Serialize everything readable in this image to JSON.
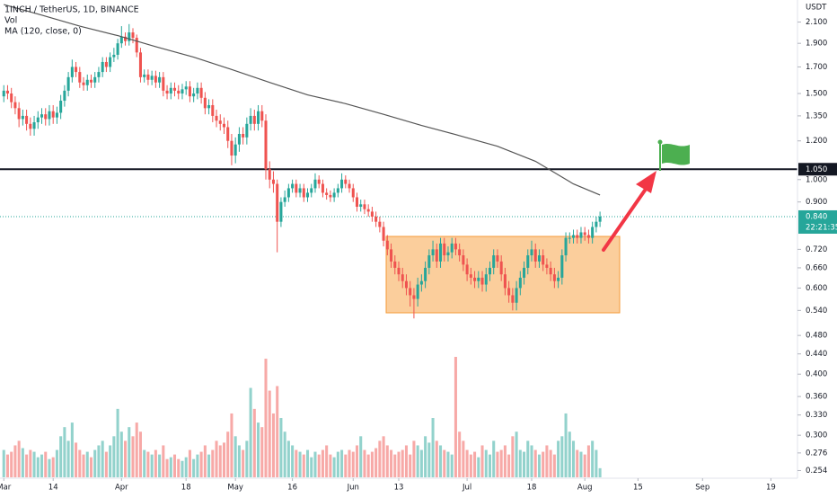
{
  "chart_data": {
    "type": "candlestick",
    "title": "1INCH / TetherUS, 1D, BINANCE",
    "y_unit": "USDT",
    "up_color": "#26a69a",
    "down_color": "#ef5350",
    "log_scale": true,
    "grid": false,
    "x": [
      "03-01",
      "03-02",
      "03-03",
      "03-04",
      "03-05",
      "03-06",
      "03-07",
      "03-08",
      "03-09",
      "03-10",
      "03-11",
      "03-12",
      "03-13",
      "03-14",
      "03-15",
      "03-16",
      "03-17",
      "03-18",
      "03-19",
      "03-20",
      "03-21",
      "03-22",
      "03-23",
      "03-24",
      "03-25",
      "03-26",
      "03-27",
      "03-28",
      "03-29",
      "03-30",
      "03-31",
      "04-01",
      "04-02",
      "04-03",
      "04-04",
      "04-05",
      "04-06",
      "04-07",
      "04-08",
      "04-09",
      "04-10",
      "04-11",
      "04-12",
      "04-13",
      "04-14",
      "04-15",
      "04-16",
      "04-17",
      "04-18",
      "04-19",
      "04-20",
      "04-21",
      "04-22",
      "04-23",
      "04-24",
      "04-25",
      "04-26",
      "04-27",
      "04-28",
      "04-29",
      "04-30",
      "05-01",
      "05-02",
      "05-03",
      "05-04",
      "05-05",
      "05-06",
      "05-07",
      "05-08",
      "05-09",
      "05-10",
      "05-11",
      "05-12",
      "05-13",
      "05-14",
      "05-15",
      "05-16",
      "05-17",
      "05-18",
      "05-19",
      "05-20",
      "05-21",
      "05-22",
      "05-23",
      "05-24",
      "05-25",
      "05-26",
      "05-27",
      "05-28",
      "05-29",
      "05-30",
      "05-31",
      "06-01",
      "06-02",
      "06-03",
      "06-04",
      "06-05",
      "06-06",
      "06-07",
      "06-08",
      "06-09",
      "06-10",
      "06-11",
      "06-12",
      "06-13",
      "06-14",
      "06-15",
      "06-16",
      "06-17",
      "06-18",
      "06-19",
      "06-20",
      "06-21",
      "06-22",
      "06-23",
      "06-24",
      "06-25",
      "06-26",
      "06-27",
      "06-28",
      "06-29",
      "06-30",
      "07-01",
      "07-02",
      "07-03",
      "07-04",
      "07-05",
      "07-06",
      "07-07",
      "07-08",
      "07-09",
      "07-10",
      "07-11",
      "07-12",
      "07-13",
      "07-14",
      "07-15",
      "07-16",
      "07-17",
      "07-18",
      "07-19",
      "07-20",
      "07-21",
      "07-22",
      "07-23",
      "07-24",
      "07-25",
      "07-26",
      "07-27",
      "07-28",
      "07-29",
      "07-30",
      "07-31",
      "08-01",
      "08-02",
      "08-03",
      "08-04",
      "08-05"
    ],
    "open": [
      1.48,
      1.52,
      1.5,
      1.44,
      1.4,
      1.33,
      1.35,
      1.3,
      1.27,
      1.31,
      1.34,
      1.36,
      1.33,
      1.38,
      1.34,
      1.37,
      1.45,
      1.52,
      1.62,
      1.7,
      1.66,
      1.58,
      1.56,
      1.6,
      1.58,
      1.62,
      1.66,
      1.74,
      1.7,
      1.78,
      1.8,
      1.9,
      1.96,
      1.92,
      2.0,
      1.95,
      1.82,
      1.62,
      1.64,
      1.6,
      1.63,
      1.58,
      1.62,
      1.52,
      1.5,
      1.54,
      1.52,
      1.5,
      1.53,
      1.55,
      1.48,
      1.5,
      1.54,
      1.47,
      1.4,
      1.42,
      1.35,
      1.32,
      1.3,
      1.28,
      1.2,
      1.12,
      1.18,
      1.24,
      1.22,
      1.3,
      1.35,
      1.3,
      1.38,
      1.32,
      1.05,
      1.0,
      0.98,
      0.82,
      0.9,
      0.92,
      0.96,
      0.98,
      0.94,
      0.96,
      0.92,
      0.94,
      0.96,
      1.0,
      0.98,
      0.94,
      0.93,
      0.92,
      0.94,
      0.96,
      1.0,
      0.98,
      0.96,
      0.92,
      0.88,
      0.89,
      0.87,
      0.86,
      0.84,
      0.82,
      0.8,
      0.75,
      0.72,
      0.68,
      0.66,
      0.64,
      0.62,
      0.6,
      0.58,
      0.57,
      0.61,
      0.62,
      0.66,
      0.7,
      0.72,
      0.68,
      0.74,
      0.7,
      0.71,
      0.74,
      0.72,
      0.7,
      0.67,
      0.64,
      0.63,
      0.62,
      0.63,
      0.61,
      0.64,
      0.66,
      0.7,
      0.68,
      0.64,
      0.6,
      0.58,
      0.56,
      0.6,
      0.63,
      0.66,
      0.7,
      0.72,
      0.68,
      0.7,
      0.67,
      0.66,
      0.64,
      0.62,
      0.63,
      0.7,
      0.76,
      0.76,
      0.77,
      0.76,
      0.78,
      0.77,
      0.76,
      0.8,
      0.82
    ],
    "high": [
      1.56,
      1.56,
      1.54,
      1.48,
      1.44,
      1.39,
      1.39,
      1.34,
      1.35,
      1.38,
      1.4,
      1.4,
      1.42,
      1.42,
      1.41,
      1.49,
      1.56,
      1.66,
      1.76,
      1.74,
      1.7,
      1.62,
      1.64,
      1.64,
      1.66,
      1.7,
      1.78,
      1.78,
      1.82,
      1.86,
      1.94,
      2.06,
      2.0,
      2.08,
      2.04,
      1.98,
      1.86,
      1.68,
      1.68,
      1.67,
      1.67,
      1.66,
      1.66,
      1.56,
      1.58,
      1.58,
      1.56,
      1.57,
      1.59,
      1.59,
      1.54,
      1.58,
      1.58,
      1.51,
      1.46,
      1.46,
      1.39,
      1.36,
      1.34,
      1.32,
      1.24,
      1.22,
      1.28,
      1.28,
      1.34,
      1.4,
      1.39,
      1.42,
      1.42,
      1.36,
      1.09,
      1.04,
      1.0,
      0.92,
      0.95,
      0.98,
      1.0,
      1.0,
      0.98,
      0.98,
      0.96,
      0.98,
      1.03,
      1.02,
      1.0,
      0.96,
      0.95,
      0.96,
      0.98,
      1.03,
      1.02,
      1.0,
      0.98,
      0.94,
      0.91,
      0.91,
      0.89,
      0.88,
      0.86,
      0.84,
      0.82,
      0.77,
      0.74,
      0.7,
      0.68,
      0.66,
      0.64,
      0.62,
      0.6,
      0.63,
      0.64,
      0.68,
      0.72,
      0.75,
      0.74,
      0.76,
      0.76,
      0.73,
      0.76,
      0.76,
      0.74,
      0.72,
      0.69,
      0.66,
      0.65,
      0.65,
      0.65,
      0.66,
      0.68,
      0.72,
      0.72,
      0.7,
      0.66,
      0.62,
      0.6,
      0.62,
      0.65,
      0.68,
      0.72,
      0.75,
      0.74,
      0.72,
      0.72,
      0.69,
      0.68,
      0.66,
      0.65,
      0.72,
      0.78,
      0.78,
      0.79,
      0.79,
      0.8,
      0.8,
      0.79,
      0.82,
      0.84,
      0.86
    ],
    "low": [
      1.44,
      1.46,
      1.4,
      1.36,
      1.28,
      1.29,
      1.26,
      1.23,
      1.23,
      1.27,
      1.3,
      1.29,
      1.29,
      1.3,
      1.3,
      1.33,
      1.41,
      1.48,
      1.58,
      1.62,
      1.54,
      1.52,
      1.52,
      1.54,
      1.54,
      1.58,
      1.62,
      1.66,
      1.66,
      1.74,
      1.76,
      1.86,
      1.88,
      1.88,
      1.9,
      1.78,
      1.58,
      1.58,
      1.56,
      1.56,
      1.54,
      1.54,
      1.48,
      1.46,
      1.46,
      1.48,
      1.46,
      1.46,
      1.49,
      1.44,
      1.44,
      1.46,
      1.43,
      1.36,
      1.36,
      1.31,
      1.28,
      1.26,
      1.24,
      1.16,
      1.07,
      1.08,
      1.14,
      1.18,
      1.18,
      1.26,
      1.26,
      1.26,
      1.28,
      1.0,
      0.96,
      0.94,
      0.71,
      0.8,
      0.88,
      0.9,
      0.94,
      0.92,
      0.92,
      0.9,
      0.9,
      0.92,
      0.94,
      0.96,
      0.92,
      0.91,
      0.9,
      0.9,
      0.92,
      0.94,
      0.96,
      0.94,
      0.9,
      0.86,
      0.86,
      0.85,
      0.84,
      0.82,
      0.8,
      0.78,
      0.73,
      0.7,
      0.66,
      0.64,
      0.62,
      0.6,
      0.58,
      0.55,
      0.52,
      0.55,
      0.59,
      0.6,
      0.64,
      0.68,
      0.66,
      0.66,
      0.68,
      0.68,
      0.69,
      0.7,
      0.68,
      0.65,
      0.62,
      0.61,
      0.6,
      0.6,
      0.59,
      0.59,
      0.62,
      0.64,
      0.66,
      0.62,
      0.58,
      0.56,
      0.54,
      0.54,
      0.58,
      0.61,
      0.64,
      0.68,
      0.66,
      0.66,
      0.65,
      0.64,
      0.62,
      0.6,
      0.6,
      0.61,
      0.68,
      0.74,
      0.74,
      0.74,
      0.74,
      0.75,
      0.74,
      0.74,
      0.78,
      0.8
    ],
    "close": [
      1.52,
      1.5,
      1.44,
      1.4,
      1.33,
      1.35,
      1.3,
      1.27,
      1.31,
      1.34,
      1.36,
      1.33,
      1.38,
      1.34,
      1.37,
      1.45,
      1.52,
      1.62,
      1.7,
      1.66,
      1.58,
      1.56,
      1.6,
      1.58,
      1.62,
      1.66,
      1.74,
      1.7,
      1.78,
      1.8,
      1.9,
      1.96,
      1.92,
      2.0,
      1.95,
      1.82,
      1.62,
      1.64,
      1.6,
      1.63,
      1.58,
      1.62,
      1.52,
      1.5,
      1.54,
      1.52,
      1.5,
      1.53,
      1.55,
      1.48,
      1.5,
      1.54,
      1.47,
      1.4,
      1.42,
      1.35,
      1.32,
      1.3,
      1.28,
      1.2,
      1.12,
      1.18,
      1.24,
      1.22,
      1.3,
      1.35,
      1.3,
      1.38,
      1.32,
      1.05,
      1.0,
      0.98,
      0.82,
      0.9,
      0.92,
      0.96,
      0.98,
      0.94,
      0.96,
      0.92,
      0.94,
      0.96,
      1.0,
      0.98,
      0.94,
      0.93,
      0.92,
      0.94,
      0.96,
      1.0,
      0.98,
      0.96,
      0.92,
      0.88,
      0.89,
      0.87,
      0.86,
      0.84,
      0.82,
      0.8,
      0.75,
      0.72,
      0.68,
      0.66,
      0.64,
      0.62,
      0.6,
      0.58,
      0.57,
      0.61,
      0.62,
      0.66,
      0.7,
      0.72,
      0.68,
      0.74,
      0.7,
      0.71,
      0.74,
      0.72,
      0.7,
      0.67,
      0.64,
      0.63,
      0.62,
      0.63,
      0.61,
      0.64,
      0.66,
      0.7,
      0.68,
      0.64,
      0.6,
      0.58,
      0.56,
      0.6,
      0.63,
      0.66,
      0.7,
      0.72,
      0.68,
      0.7,
      0.67,
      0.66,
      0.64,
      0.62,
      0.63,
      0.7,
      0.76,
      0.76,
      0.77,
      0.76,
      0.78,
      0.77,
      0.76,
      0.8,
      0.82,
      0.84
    ],
    "volume": {
      "name": "Vol",
      "values": [
        30,
        25,
        28,
        35,
        40,
        32,
        25,
        30,
        28,
        22,
        25,
        28,
        20,
        22,
        30,
        45,
        55,
        40,
        60,
        38,
        30,
        25,
        28,
        22,
        30,
        35,
        40,
        28,
        35,
        45,
        75,
        50,
        40,
        55,
        45,
        60,
        50,
        30,
        28,
        25,
        30,
        25,
        35,
        20,
        22,
        25,
        20,
        18,
        22,
        30,
        20,
        25,
        28,
        35,
        25,
        30,
        40,
        35,
        38,
        50,
        70,
        45,
        35,
        30,
        40,
        98,
        75,
        60,
        55,
        130,
        95,
        70,
        100,
        65,
        50,
        40,
        35,
        30,
        28,
        25,
        30,
        22,
        28,
        25,
        30,
        35,
        25,
        22,
        28,
        30,
        25,
        30,
        28,
        35,
        45,
        30,
        25,
        28,
        32,
        40,
        45,
        35,
        30,
        25,
        28,
        30,
        35,
        25,
        40,
        35,
        30,
        45,
        38,
        65,
        40,
        35,
        30,
        28,
        25,
        132,
        50,
        40,
        30,
        25,
        28,
        22,
        35,
        30,
        25,
        40,
        28,
        30,
        35,
        25,
        45,
        50,
        30,
        28,
        40,
        35,
        30,
        25,
        28,
        35,
        30,
        25,
        40,
        45,
        70,
        50,
        40,
        30,
        28,
        25,
        35,
        40,
        30,
        10
      ]
    },
    "ma": {
      "name": "MA (120, close, 0)",
      "color": "#555555",
      "x": [
        "03-01",
        "03-11",
        "03-21",
        "03-31",
        "04-10",
        "04-20",
        "04-30",
        "05-10",
        "05-20",
        "05-30",
        "06-09",
        "06-19",
        "06-29",
        "07-09",
        "07-19",
        "07-29",
        "08-05"
      ],
      "values": [
        2.28,
        2.17,
        2.06,
        1.97,
        1.87,
        1.78,
        1.68,
        1.58,
        1.49,
        1.43,
        1.36,
        1.29,
        1.23,
        1.17,
        1.09,
        0.98,
        0.93
      ]
    },
    "ylim": [
      0.245,
      2.33
    ],
    "yticks": [
      {
        "value": 2.1,
        "label": "2.100"
      },
      {
        "value": 1.9,
        "label": "1.900"
      },
      {
        "value": 1.7,
        "label": "1.700"
      },
      {
        "value": 1.5,
        "label": "1.500"
      },
      {
        "value": 1.35,
        "label": "1.350"
      },
      {
        "value": 1.2,
        "label": "1.200"
      },
      {
        "value": 1.0,
        "label": "1.000"
      },
      {
        "value": 0.9,
        "label": "0.900"
      },
      {
        "value": 0.72,
        "label": "0.720"
      },
      {
        "value": 0.66,
        "label": "0.660"
      },
      {
        "value": 0.6,
        "label": "0.600"
      },
      {
        "value": 0.54,
        "label": "0.540"
      },
      {
        "value": 0.48,
        "label": "0.480"
      },
      {
        "value": 0.44,
        "label": "0.440"
      },
      {
        "value": 0.4,
        "label": "0.400"
      },
      {
        "value": 0.36,
        "label": "0.360"
      },
      {
        "value": 0.33,
        "label": "0.330"
      },
      {
        "value": 0.3,
        "label": "0.300"
      },
      {
        "value": 0.276,
        "label": "0.276"
      },
      {
        "value": 0.254,
        "label": "0.254"
      }
    ],
    "xlim": [
      "02-28",
      "09-26"
    ],
    "xticks": [
      {
        "value": "03-01",
        "label": "Mar"
      },
      {
        "value": "03-14",
        "label": "14"
      },
      {
        "value": "04-01",
        "label": "Apr"
      },
      {
        "value": "04-18",
        "label": "18"
      },
      {
        "value": "05-01",
        "label": "May"
      },
      {
        "value": "05-16",
        "label": "16"
      },
      {
        "value": "06-01",
        "label": "Jun"
      },
      {
        "value": "06-13",
        "label": "13"
      },
      {
        "value": "07-01",
        "label": "Jul"
      },
      {
        "value": "07-18",
        "label": "18"
      },
      {
        "value": "08-01",
        "label": "Aug"
      },
      {
        "value": "08-15",
        "label": "15"
      },
      {
        "value": "09-01",
        "label": "Sep"
      },
      {
        "value": "09-19",
        "label": "19"
      }
    ],
    "hline": {
      "value": 1.05,
      "label": "1.050",
      "color": "#131722"
    },
    "last_price": {
      "value": 0.84,
      "label": "0.840",
      "countdown": "22:21:35",
      "color": "#26a69a"
    }
  }
}
